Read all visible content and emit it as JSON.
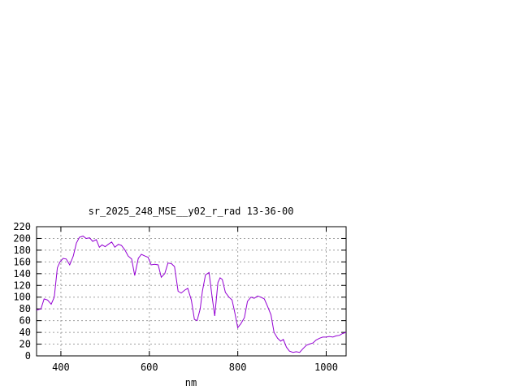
{
  "chart_data": {
    "type": "line",
    "title": "sr_2025_248_MSE__y02_r_rad 13-36-00",
    "xlabel": "nm",
    "ylabel": "",
    "xlim": [
      345,
      1045
    ],
    "ylim": [
      0,
      220
    ],
    "x_ticks": [
      400,
      600,
      800,
      1000
    ],
    "y_ticks": [
      0,
      20,
      40,
      60,
      80,
      100,
      120,
      140,
      160,
      180,
      200,
      220
    ],
    "grid": true,
    "line_color": "#9400d3",
    "series": [
      {
        "x": [
          345,
          355,
          362,
          370,
          378,
          385,
          392,
          398,
          405,
          412,
          420,
          428,
          435,
          442,
          450,
          457,
          465,
          472,
          480,
          487,
          493,
          500,
          507,
          515,
          522,
          530,
          537,
          545,
          552,
          560,
          567,
          575,
          582,
          590,
          597,
          604,
          612,
          620,
          627,
          635,
          642,
          650,
          657,
          665,
          672,
          680,
          687,
          695,
          702,
          708,
          715,
          720,
          727,
          735,
          742,
          748,
          755,
          760,
          765,
          772,
          780,
          787,
          793,
          800,
          807,
          815,
          822,
          830,
          837,
          845,
          852,
          860,
          867,
          875,
          882,
          890,
          897,
          903,
          910,
          917,
          925,
          932,
          940,
          947,
          955,
          962,
          970,
          977,
          985,
          992,
          1000,
          1007,
          1015,
          1022,
          1030,
          1037,
          1045
        ],
        "y": [
          78,
          80,
          97,
          95,
          88,
          100,
          150,
          160,
          166,
          165,
          155,
          170,
          192,
          202,
          204,
          200,
          201,
          195,
          198,
          185,
          189,
          186,
          190,
          194,
          185,
          190,
          188,
          180,
          170,
          165,
          137,
          166,
          173,
          170,
          168,
          155,
          156,
          155,
          134,
          140,
          158,
          157,
          152,
          110,
          107,
          112,
          115,
          95,
          62,
          60,
          80,
          110,
          138,
          142,
          100,
          68,
          125,
          133,
          130,
          108,
          100,
          95,
          75,
          48,
          55,
          65,
          93,
          100,
          98,
          102,
          100,
          97,
          85,
          70,
          40,
          30,
          25,
          28,
          15,
          8,
          6,
          7,
          6,
          12,
          18,
          20,
          22,
          27,
          30,
          32,
          32,
          33,
          32,
          34,
          35,
          38,
          40
        ]
      }
    ]
  }
}
